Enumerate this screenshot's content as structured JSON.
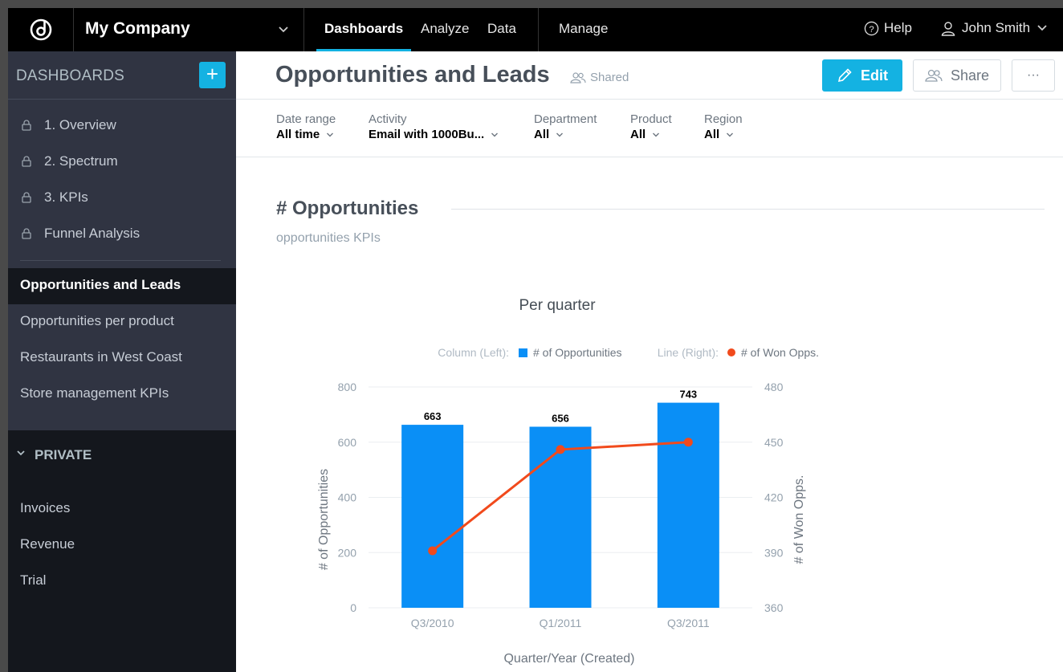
{
  "topbar": {
    "company": "My Company",
    "nav": [
      "Dashboards",
      "Analyze",
      "Data",
      "Manage"
    ],
    "help": "Help",
    "user": "John Smith"
  },
  "sidebar": {
    "title": "DASHBOARDS",
    "add_icon": "+",
    "shared_items": [
      {
        "label": "1. Overview",
        "locked": true
      },
      {
        "label": "2. Spectrum",
        "locked": true
      },
      {
        "label": "3. KPIs",
        "locked": true
      },
      {
        "label": "Funnel Analysis",
        "locked": true
      },
      {
        "label": "Opportunities and Leads",
        "locked": false,
        "active": true
      },
      {
        "label": "Opportunities per product",
        "locked": false
      },
      {
        "label": "Restaurants in West Coast",
        "locked": false
      },
      {
        "label": "Store management KPIs",
        "locked": false
      }
    ],
    "private_title": "PRIVATE",
    "private_items": [
      "Invoices",
      "Revenue",
      "Trial"
    ]
  },
  "header": {
    "title": "Opportunities and Leads",
    "shared": "Shared",
    "edit": "Edit",
    "share": "Share",
    "more": "···"
  },
  "filters": [
    {
      "label": "Date range",
      "value": "All time"
    },
    {
      "label": "Activity",
      "value": "Email with 1000Bu..."
    },
    {
      "label": "Department",
      "value": "All"
    },
    {
      "label": "Product",
      "value": "All"
    },
    {
      "label": "Region",
      "value": "All"
    }
  ],
  "section": {
    "title": "# Opportunities",
    "description": "opportunities KPIs"
  },
  "colors": {
    "accent": "#14b2e2",
    "column": "#0a8ff6",
    "line": "#f14a1c"
  },
  "chart_data": {
    "type": "bar",
    "title": "Per quarter",
    "categories": [
      "Q3/2010",
      "Q1/2011",
      "Q3/2011"
    ],
    "series": [
      {
        "name": "# of Opportunities",
        "type": "column",
        "axis": "left",
        "values": [
          663,
          656,
          743
        ]
      },
      {
        "name": "# of Won Opps.",
        "type": "line",
        "axis": "right",
        "values": [
          391,
          446,
          450
        ]
      }
    ],
    "legend": {
      "left_prefix": "Column (Left):",
      "right_prefix": "Line (Right):",
      "placement": "top"
    },
    "xlabel": "Quarter/Year (Created)",
    "ylabel": "# of Opportunities",
    "y2label": "# of Won Opps.",
    "ylim": [
      0,
      800
    ],
    "y2lim": [
      360,
      480
    ],
    "yticks": [
      0,
      200,
      400,
      600,
      800
    ],
    "y2ticks": [
      360,
      390,
      420,
      450,
      480
    ]
  }
}
